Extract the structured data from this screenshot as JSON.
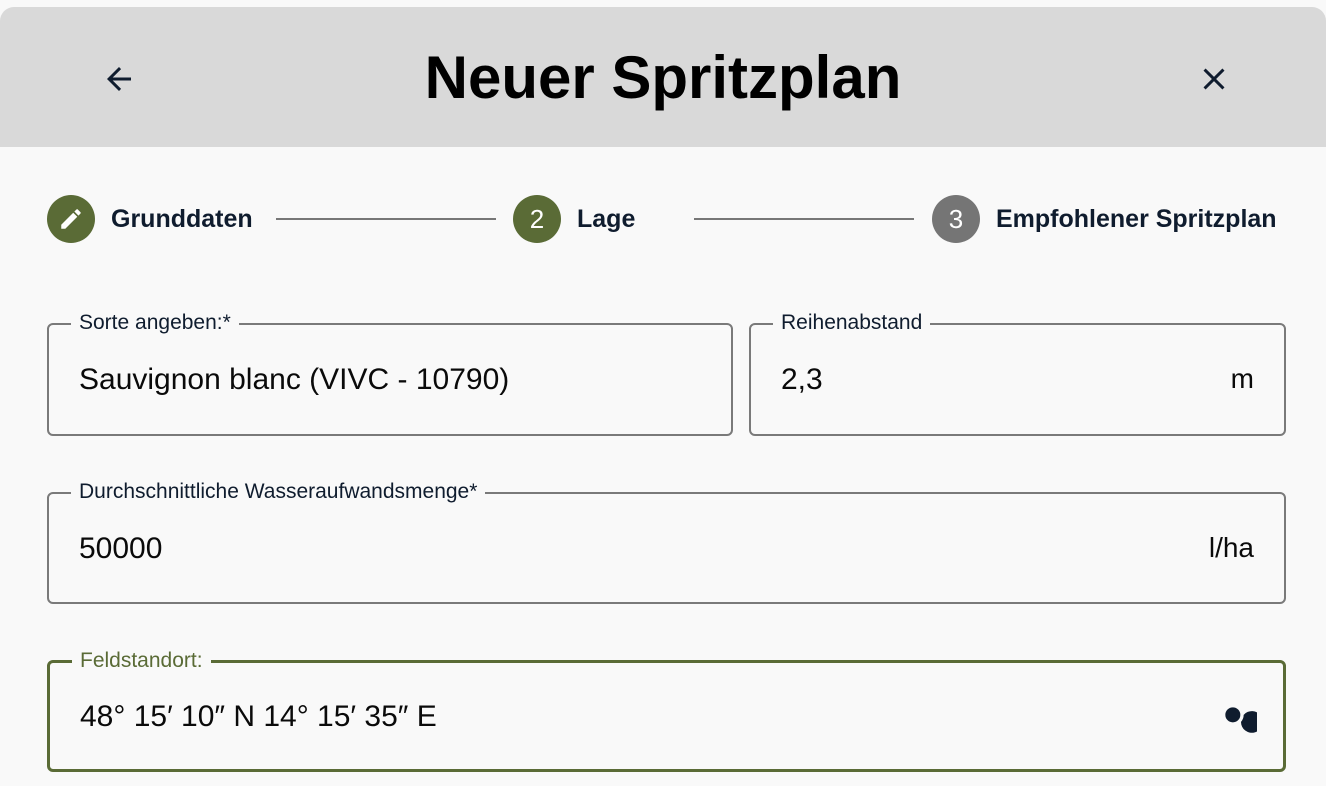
{
  "header": {
    "title": "Neuer Spritzplan",
    "back_icon": "arrow-left-icon",
    "close_icon": "close-icon"
  },
  "stepper": {
    "steps": [
      {
        "label": "Grunddaten",
        "marker": "",
        "icon": "pencil-icon",
        "state": "completed"
      },
      {
        "label": "Lage",
        "marker": "2",
        "state": "active"
      },
      {
        "label": "Empfohlener Spritzplan",
        "marker": "3",
        "state": "inactive"
      }
    ],
    "colors": {
      "active": "#5a6b36",
      "inactive": "#757575"
    }
  },
  "form": {
    "variety": {
      "label": "Sorte angeben:*",
      "value": "Sauvignon blanc (VIVC - 10790)"
    },
    "row_spacing": {
      "label": "Reihenabstand",
      "value": "2,3",
      "unit": "m"
    },
    "water": {
      "label": "Durchschnittliche Wasseraufwandsmenge*",
      "value": "50000",
      "unit": "l/ha"
    },
    "location": {
      "label": "Feldstandort:",
      "value": "48° 15′ 10″ N 14° 15′ 35″ E",
      "icon": "search-icon"
    }
  }
}
